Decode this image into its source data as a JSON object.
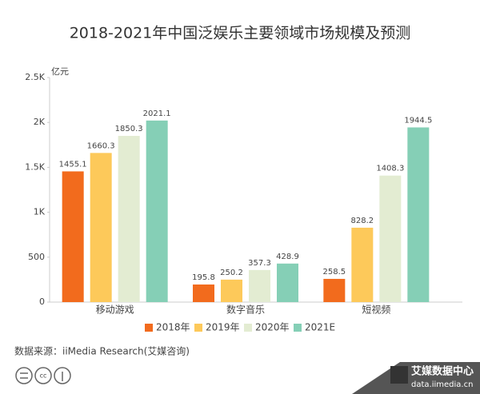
{
  "chart_data": {
    "type": "bar",
    "title": "2018-2021年中国泛娱乐主要领域市场规模及预测",
    "y_unit": "亿元",
    "categories": [
      "移动游戏",
      "数字音乐",
      "短视频"
    ],
    "series": [
      {
        "name": "2018年",
        "color": "#f26b1d",
        "values": [
          1455.1,
          195.8,
          258.5
        ]
      },
      {
        "name": "2019年",
        "color": "#fdc95a",
        "values": [
          1660.3,
          250.2,
          828.2
        ]
      },
      {
        "name": "2020年",
        "color": "#e3ecd2",
        "values": [
          1850.3,
          357.3,
          1408.3
        ]
      },
      {
        "name": "2021E",
        "color": "#85cfb6",
        "values": [
          2021.1,
          428.9,
          1944.5
        ]
      }
    ],
    "ylim": [
      0,
      2500
    ],
    "yticks": [
      0,
      500,
      {
        "value": 1000,
        "label": "1K"
      },
      {
        "value": 1500,
        "label": "1.5K"
      },
      {
        "value": 2000,
        "label": "2K"
      },
      {
        "value": 2500,
        "label": "2.5K"
      }
    ],
    "legend": "bottom"
  },
  "source": "数据来源：iiMedia Research(艾媒咨询)",
  "brand": {
    "name": "艾媒数据中心",
    "url": "data.iimedia.cn"
  }
}
